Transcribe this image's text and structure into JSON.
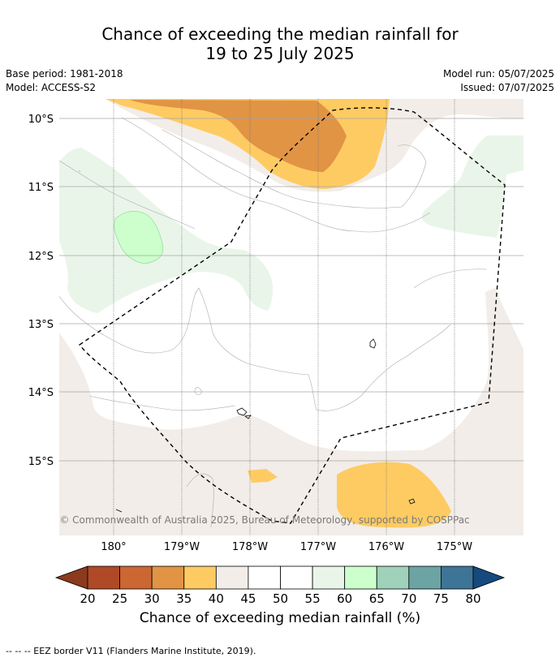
{
  "title_line1": "Chance of exceeding the median rainfall for",
  "title_line2": "19 to 25 July 2025",
  "base_period": "Base period: 1981-2018",
  "model": "Model: ACCESS-S2",
  "model_run": "Model run: 05/07/2025",
  "issued": "Issued: 07/07/2025",
  "copyright": "© Commonwealth of Australia 2025, Bureau of Meteorology, supported by COSPPac",
  "colorbar_label": "Chance of exceeding median rainfall (%)",
  "footer_legend": "--  --  -- EEZ border V11 (Flanders Marine Institute, 2019).",
  "lat_labels": [
    "10°S",
    "11°S",
    "12°S",
    "13°S",
    "14°S",
    "15°S"
  ],
  "lon_labels": [
    "180°",
    "179°W",
    "178°W",
    "177°W",
    "176°W",
    "175°W"
  ],
  "colorbar": {
    "ticks": [
      "20",
      "25",
      "30",
      "35",
      "40",
      "45",
      "50",
      "55",
      "60",
      "65",
      "70",
      "75",
      "80"
    ],
    "low_extend_color": "#8b3a1e",
    "high_extend_color": "#164a7e",
    "band_colors": [
      "#b04a26",
      "#cc6633",
      "#e19444",
      "#fecb63",
      "#f2ede8",
      "#ffffff",
      "#ffffff",
      "#eaf5ea",
      "#ccffcc",
      "#9fd1bb",
      "#6ca3a3",
      "#3e7596"
    ]
  },
  "colors": {
    "p20_25": "#b04a26",
    "p30_35": "#e19444",
    "p35_40": "#fecb63",
    "p40_45": "#f2ede8",
    "p55_60": "#eaf5ea",
    "p60_65": "#ccffcc"
  }
}
